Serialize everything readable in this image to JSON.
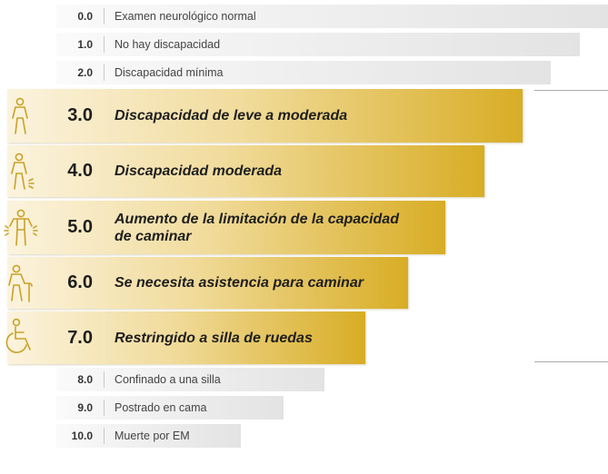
{
  "chart_data": {
    "type": "bar",
    "orientation": "horizontal",
    "title": "",
    "xlabel": "",
    "ylabel": "",
    "categories": [
      "0.0",
      "1.0",
      "2.0",
      "3.0",
      "4.0",
      "5.0",
      "6.0",
      "7.0",
      "8.0",
      "9.0",
      "10.0"
    ],
    "series": [
      {
        "values": [
          669,
          638,
          606,
          575,
          533,
          490,
          449,
          402,
          357,
          312,
          265
        ],
        "labels": [
          "Examen neurológico normal",
          "No hay discapacidad",
          "Discapacidad mínima",
          "Discapacidad de leve a moderada",
          "Discapacidad moderada",
          "Aumento de la limitación de la capacidad de caminar",
          "Se necesita asistencia para caminar",
          "Restringido a silla de ruedas",
          "Confinado a una silla",
          "Postrado en cama",
          "Muerte por EM"
        ],
        "emphasis": [
          false,
          false,
          false,
          true,
          true,
          true,
          true,
          true,
          false,
          false,
          false
        ]
      }
    ],
    "icons": {
      "3.0": "walking-person-icon",
      "4.0": "person-with-leg-pain-icon",
      "5.0": "person-shaking-icon",
      "6.0": "person-with-cane-icon",
      "7.0": "wheelchair-icon"
    },
    "colors": {
      "minor_bar_start": "#fafafa",
      "minor_bar_end": "#e3e3e3",
      "major_bar_start": "#fbf3de",
      "major_bar_end": "#d8ad25",
      "icon": "#c9a227"
    }
  }
}
